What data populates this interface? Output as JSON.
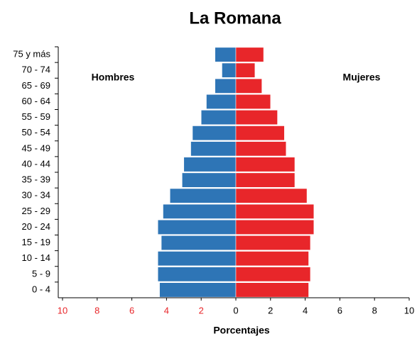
{
  "chart_data": {
    "type": "pyramid",
    "title": "La Romana",
    "x_label": "Porcentajes",
    "categories": [
      "0 - 4",
      "5 - 9",
      "10 - 14",
      "15 - 19",
      "20 - 24",
      "25 - 29",
      "30 - 34",
      "35 - 39",
      "40 - 44",
      "45 - 49",
      "50 - 54",
      "55 - 59",
      "60 - 64",
      "65 - 69",
      "70 - 74",
      "75 y más"
    ],
    "series": [
      {
        "name": "Hombres",
        "color": "#2e75b6",
        "values": [
          -4.4,
          -4.5,
          -4.5,
          -4.3,
          -4.5,
          -4.2,
          -3.8,
          -3.1,
          -3.0,
          -2.6,
          -2.5,
          -2.0,
          -1.7,
          -1.2,
          -0.8,
          -1.2
        ]
      },
      {
        "name": "Mujeres",
        "color": "#e8262a",
        "values": [
          4.2,
          4.3,
          4.2,
          4.3,
          4.5,
          4.5,
          4.1,
          3.4,
          3.4,
          2.9,
          2.8,
          2.4,
          2.0,
          1.5,
          1.1,
          1.6
        ]
      }
    ],
    "xlim": [
      -10,
      10
    ],
    "xticks": [
      {
        "value": -10,
        "label": "10"
      },
      {
        "value": -8,
        "label": "8"
      },
      {
        "value": -6,
        "label": "6"
      },
      {
        "value": -4,
        "label": "4"
      },
      {
        "value": -2,
        "label": "2"
      },
      0,
      2,
      4,
      6,
      8,
      10
    ],
    "negative_tick_color": "#e8262a"
  }
}
